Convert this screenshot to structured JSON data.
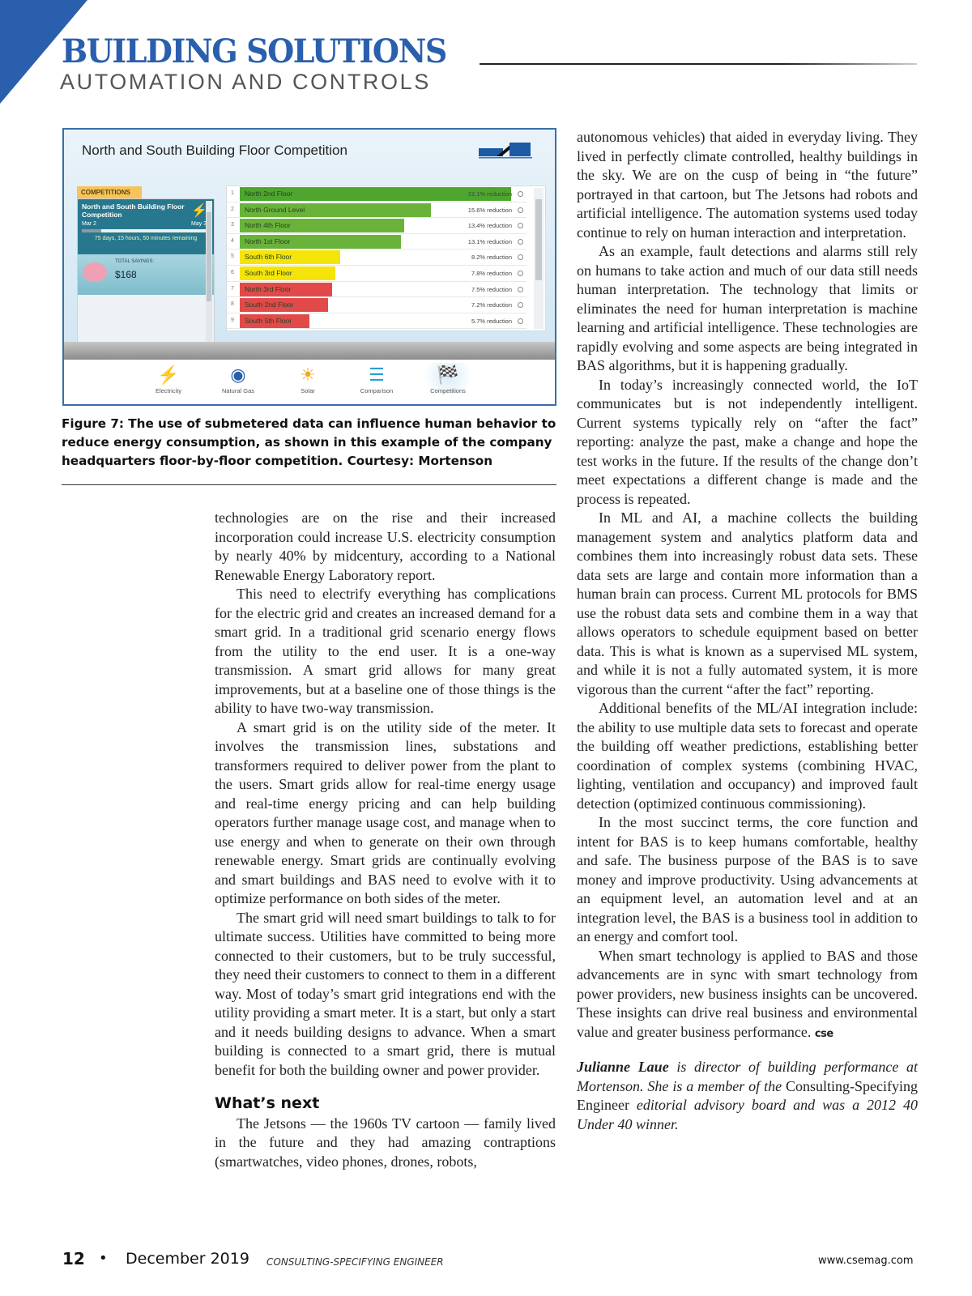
{
  "header": {
    "title": "BUILDING SOLUTIONS",
    "subtitle": "AUTOMATION AND CONTROLS",
    "accent": "#2a5fae"
  },
  "figure": {
    "title": "North and South Building Floor Competition",
    "competitions_tab": "COMPETITIONS",
    "competition": {
      "name": "North and South Building Floor Competition",
      "start": "Mar 2",
      "end": "May 31",
      "progress": 0.15,
      "remaining": "75 days, 15 hours, 50 minutes remaining",
      "savings_label": "TOTAL SAVINGS:",
      "savings_value": "$168"
    },
    "rows": [
      {
        "rank": "1",
        "name": "North 2nd Floor",
        "value": 22.1,
        "label": "22.1% reduction",
        "color": "#4ea62f"
      },
      {
        "rank": "2",
        "name": "North Ground Level",
        "value": 15.6,
        "label": "15.6% reduction",
        "color": "#6ab33b"
      },
      {
        "rank": "3",
        "name": "North 4th Floor",
        "value": 13.4,
        "label": "13.4% reduction",
        "color": "#6ab33b"
      },
      {
        "rank": "4",
        "name": "North 1st Floor",
        "value": 13.1,
        "label": "13.1% reduction",
        "color": "#6ab33b"
      },
      {
        "rank": "5",
        "name": "South 6th Floor",
        "value": 8.2,
        "label": "8.2% reduction",
        "color": "#f4e40a"
      },
      {
        "rank": "6",
        "name": "South 3rd Floor",
        "value": 7.8,
        "label": "7.8% reduction",
        "color": "#f4e40a"
      },
      {
        "rank": "7",
        "name": "North 3rd Floor",
        "value": 7.5,
        "label": "7.5% reduction",
        "color": "#e24a4a"
      },
      {
        "rank": "8",
        "name": "South 2nd Floor",
        "value": 7.2,
        "label": "7.2% reduction",
        "color": "#e24a4a"
      },
      {
        "rank": "9",
        "name": "South 5th Floor",
        "value": 5.7,
        "label": "5.7% reduction",
        "color": "#e24a4a"
      }
    ],
    "nav": [
      {
        "label": "Electricity",
        "icon": "lightning-icon"
      },
      {
        "label": "Natural Gas",
        "icon": "gas-burner-icon"
      },
      {
        "label": "Solar",
        "icon": "sun-icon"
      },
      {
        "label": "Comparison",
        "icon": "bar-comparison-icon"
      },
      {
        "label": "Competitions",
        "icon": "checkered-flag-icon",
        "active": true
      }
    ],
    "caption": "Figure 7: The use of submetered data can influence human behavior to reduce energy consumption, as shown in this example of the company headquarters floor-by-floor competition. Courtesy: Mortenson"
  },
  "left_column": {
    "paragraphs": [
      "technologies are on the rise and their increased incorporation could increase U.S. electricity consumption by nearly 40% by midcentury, according to a National Renewable Energy Laboratory report.",
      "This need to electrify everything has complications for the electric grid and creates an increased demand for a smart grid. In a traditional grid scenario energy flows from the utility to the end user. It is a one-way transmission. A smart grid allows for many great improvements, but at a baseline one of those things is the ability to have two-way transmission.",
      "A smart grid is on the utility side of the meter. It involves the transmission lines, substations and transformers required to deliver power from the plant to the users. Smart grids allow for real-time energy usage and real-time energy pricing and can help building operators further manage usage cost, and manage when to use energy and when to generate on their own through renewable energy. Smart grids are continually evolving and smart buildings and BAS need to evolve with it to optimize performance on both sides of the meter.",
      "The smart grid will need smart buildings to talk to for ultimate success. Utilities have committed to being more connected to their customers, but to be truly successful, they need their customers to connect to them in a different way. Most of today’s smart grid integrations end with the utility providing a smart meter. It is a start, but only a start and it needs building designs to advance. When a smart building is connected to a smart grid, there is mutual benefit for both the building owner and power provider."
    ],
    "heading": "What’s next",
    "after_heading": "The Jetsons — the 1960s TV cartoon — family lived in the future and they had amazing contraptions (smartwatches, video phones, drones, robots,"
  },
  "right_column": {
    "paragraphs": [
      "autonomous vehicles) that aided in everyday living. They lived in perfectly climate controlled, healthy buildings in the sky. We are on the cusp of being in “the future” portrayed in that cartoon, but The Jetsons had robots and artificial intelligence. The automation systems used today continue to rely on human interaction and interpretation.",
      "As an example, fault detections and alarms still rely on humans to take action and much of our data still needs human interpretation. The technology that limits or eliminates the need for human interpretation is machine learning and artificial intelligence. These technologies are rapidly evolving and some aspects are being integrated in BAS algorithms, but it is happening gradually.",
      "In today’s increasingly connected world, the IoT communicates but is not independently intelligent. Current systems typically rely on “after the fact” reporting: analyze the past, make a change and hope the test works in the future. If the results of the change don’t meet expectations a different change is made and the process is repeated.",
      "In ML and AI, a machine collects the building management system and analytics platform data and combines them into increasingly robust data sets. These data sets are large and contain more information than a human brain can process. Current ML protocols for BMS use the robust data sets and combine them in a way that allows operators to schedule equipment based on better data. This is what is known as a supervised ML system, and while it is not a fully automated system, it is more vigorous than the current “after the fact” reporting.",
      "Additional benefits of the ML/AI integration include: the ability to use multiple data sets to forecast and operate the building off weather predictions, establishing better coordination of complex systems (combining HVAC, lighting, ventilation and occupancy) and improved fault detection (optimized continuous commissioning).",
      "In the most succinct terms, the core function and intent for BAS is to keep humans comfortable, healthy and safe. The business purpose of the BAS is to save money and improve productivity. Using advancements at an equipment level, an automation level and at an integration level, the BAS is a business tool in addition to an energy and comfort tool.",
      "When smart technology is applied to BAS and those advancements are in sync with smart technology from power providers, new business insights can be uncovered. These insights can drive real business and environmental value and greater business performance."
    ],
    "end_mark": "cse",
    "bio": {
      "name": "Julianne Laue",
      "text1": " is director of building performance at Mortenson. She is a member of the ",
      "publication": "Consulting-Specifying Engineer",
      "text2": " editorial advisory board and was a 2012 40 Under 40 winner."
    }
  },
  "footer": {
    "page": "12",
    "bullet": "•",
    "date": "December 2019",
    "publication": "CONSULTING-SPECIFYING ENGINEER",
    "url": "www.csemag.com"
  }
}
